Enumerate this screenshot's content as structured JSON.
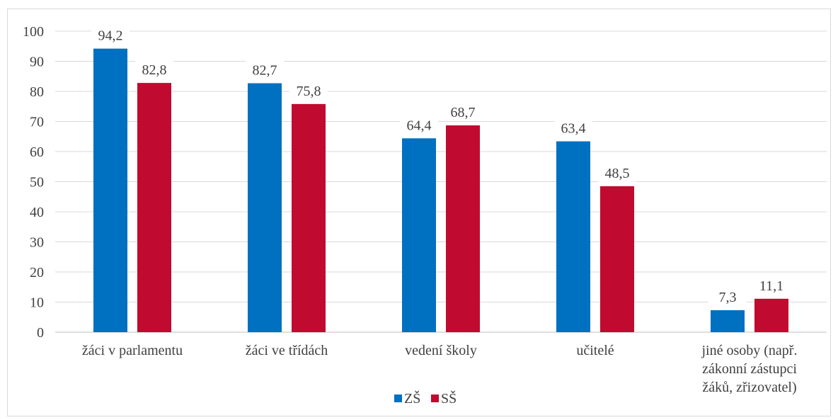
{
  "chart_data": {
    "type": "bar",
    "categories": [
      [
        "žáci v parlamentu"
      ],
      [
        "žáci ve třídách"
      ],
      [
        "vedení školy"
      ],
      [
        "učitelé"
      ],
      [
        "jiné osoby (např.",
        "zákonní zástupci",
        "žáků, zřizovatel)"
      ]
    ],
    "series": [
      {
        "name": "ZŠ",
        "color": "#0070C0",
        "values": [
          94.2,
          82.7,
          64.4,
          63.4,
          7.3
        ],
        "labels": [
          "94,2",
          "82,7",
          "64,4",
          "63,4",
          "7,3"
        ]
      },
      {
        "name": "SŠ",
        "color": "#C00A2F",
        "values": [
          82.8,
          75.8,
          68.7,
          48.5,
          11.1
        ],
        "labels": [
          "82,8",
          "75,8",
          "68,7",
          "48,5",
          "11,1"
        ]
      }
    ],
    "ylim": [
      0,
      100
    ],
    "yticks": [
      0,
      10,
      20,
      30,
      40,
      50,
      60,
      70,
      80,
      90,
      100
    ],
    "grid": true,
    "legend": "bottom-center",
    "title": "",
    "xlabel": "",
    "ylabel": ""
  }
}
